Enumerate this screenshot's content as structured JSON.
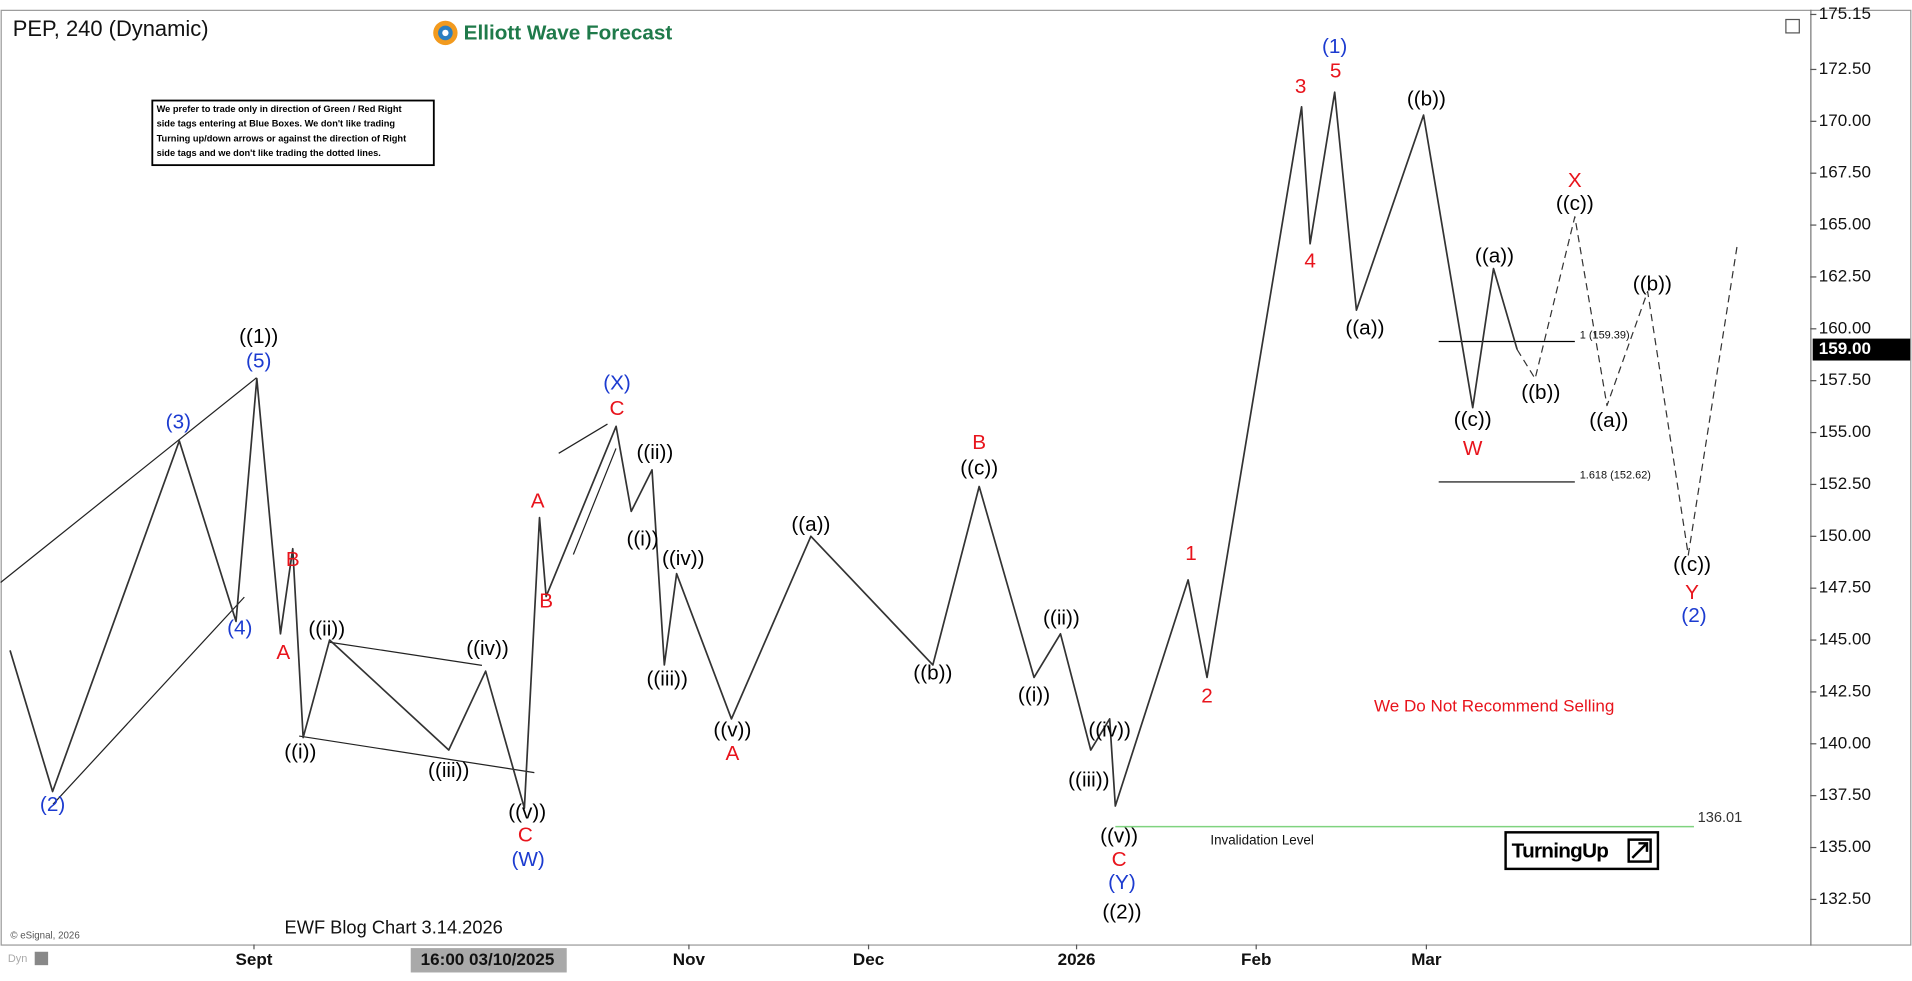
{
  "chart_data": {
    "type": "line",
    "title": "PEP, 240 (Dynamic)",
    "xlim": [
      -26.8,
      164.6
    ],
    "ylim": [
      130.33,
      175.26
    ],
    "xticks": [
      {
        "value": 0,
        "label": "Sept"
      },
      {
        "value": 46,
        "label": "Nov"
      },
      {
        "value": 65,
        "label": "Dec"
      },
      {
        "value": 87,
        "label": "2026"
      },
      {
        "value": 106,
        "label": "Feb"
      },
      {
        "value": 124,
        "label": "Mar"
      }
    ],
    "yticks": [
      {
        "value": 132.5,
        "label": "132.50"
      },
      {
        "value": 135,
        "label": "135.00"
      },
      {
        "value": 137.5,
        "label": "137.50"
      },
      {
        "value": 140,
        "label": "140.00"
      },
      {
        "value": 142.5,
        "label": "142.50"
      },
      {
        "value": 145,
        "label": "145.00"
      },
      {
        "value": 147.5,
        "label": "147.50"
      },
      {
        "value": 150,
        "label": "150.00"
      },
      {
        "value": 152.5,
        "label": "152.50"
      },
      {
        "value": 155,
        "label": "155.00"
      },
      {
        "value": 157.5,
        "label": "157.50"
      },
      {
        "value": 160,
        "label": "160.00"
      },
      {
        "value": 162.5,
        "label": "162.50"
      },
      {
        "value": 165,
        "label": "165.00"
      },
      {
        "value": 167.5,
        "label": "167.50"
      },
      {
        "value": 170,
        "label": "170.00"
      },
      {
        "value": 172.5,
        "label": "172.50"
      },
      175.15
    ],
    "grid": false,
    "series": [
      {
        "color": "#333333",
        "dash": false,
        "x": [
          -25.8,
          -21.3,
          -7.9,
          -1.9,
          0.3,
          2.8,
          4.1,
          5.2,
          8.0,
          20.6,
          24.5,
          28.6,
          30.2,
          30.9,
          38.3,
          39.9,
          42.1,
          43.4,
          44.7,
          50.5,
          58.9,
          71.8,
          76.7,
          82.5,
          85.3,
          88.5,
          90.5,
          91.1,
          98.8,
          100.8,
          110.8,
          111.7,
          114.3,
          116.6,
          123.7,
          128.9,
          131.1,
          133.6
        ],
        "values": [
          144.5,
          137.7,
          154.6,
          145.9,
          157.6,
          145.3,
          149.4,
          140.3,
          145.0,
          139.7,
          143.5,
          136.9,
          150.9,
          147.1,
          155.3,
          151.2,
          153.2,
          143.8,
          148.2,
          141.2,
          150.0,
          143.8,
          152.4,
          143.2,
          145.3,
          139.7,
          141.2,
          137.0,
          147.9,
          143.2,
          170.7,
          164.1,
          171.4,
          160.9,
          170.3,
          156.2,
          162.9,
          159.0
        ]
      },
      {
        "color": "#333333",
        "dash": true,
        "x": [
          133.6,
          135.5,
          139.7,
          143.1,
          147.4,
          151.7,
          156.9
        ],
        "values": [
          159.0,
          157.6,
          165.4,
          156.3,
          161.8,
          149.1,
          164.1
        ]
      }
    ],
    "last_price": {
      "value": 159,
      "label": "159.00"
    },
    "cursor": {
      "x": 24.7,
      "label": "16:00 03/10/2025"
    },
    "levels": [
      {
        "value": 159.39,
        "label": "1 (159.39)",
        "x": [
          125.3,
          139.7
        ]
      },
      {
        "value": 152.62,
        "label": "1.618 (152.62)",
        "x": [
          125.3,
          139.7
        ]
      }
    ],
    "invalidation": {
      "value": 136.01,
      "label": "136.01",
      "text": "Invalidation Level",
      "x": [
        91.1,
        152.3
      ],
      "color": "#7fd37f"
    },
    "annotations": [
      {
        "text": "((1))",
        "x": 0.5,
        "y": 159.58,
        "color": "#000000"
      },
      {
        "text": "(5)",
        "x": 0.5,
        "y": 158.4,
        "color": "#1c3bd0"
      },
      {
        "text": "(3)",
        "x": -8.0,
        "y": 155.47,
        "color": "#1c3bd0"
      },
      {
        "text": "(4)",
        "x": -1.5,
        "y": 145.54,
        "color": "#1c3bd0"
      },
      {
        "text": "(2)",
        "x": -21.3,
        "y": 137.02,
        "color": "#1c3bd0"
      },
      {
        "text": "B",
        "x": 4.1,
        "y": 148.83,
        "color": "#e8141c"
      },
      {
        "text": "A",
        "x": 3.1,
        "y": 144.36,
        "color": "#e8141c"
      },
      {
        "text": "((ii))",
        "x": 7.7,
        "y": 145.48,
        "color": "#000000"
      },
      {
        "text": "((i))",
        "x": 4.9,
        "y": 139.55,
        "color": "#000000"
      },
      {
        "text": "((iii))",
        "x": 20.6,
        "y": 138.67,
        "color": "#000000"
      },
      {
        "text": "((iv))",
        "x": 24.7,
        "y": 144.54,
        "color": "#000000"
      },
      {
        "text": "((v))",
        "x": 28.9,
        "y": 136.67,
        "color": "#000000"
      },
      {
        "text": "C",
        "x": 28.7,
        "y": 135.55,
        "color": "#e8141c"
      },
      {
        "text": "(W)",
        "x": 29.0,
        "y": 134.38,
        "color": "#1c3bd0"
      },
      {
        "text": "A",
        "x": 30.0,
        "y": 151.65,
        "color": "#e8141c"
      },
      {
        "text": "B",
        "x": 30.9,
        "y": 146.83,
        "color": "#e8141c"
      },
      {
        "text": "(X)",
        "x": 38.4,
        "y": 157.35,
        "color": "#1c3bd0"
      },
      {
        "text": "C",
        "x": 38.4,
        "y": 156.11,
        "color": "#e8141c"
      },
      {
        "text": "((ii))",
        "x": 42.4,
        "y": 154.0,
        "color": "#000000"
      },
      {
        "text": "((i))",
        "x": 41.1,
        "y": 149.83,
        "color": "#000000"
      },
      {
        "text": "((iv))",
        "x": 45.4,
        "y": 148.89,
        "color": "#000000"
      },
      {
        "text": "((iii))",
        "x": 43.7,
        "y": 143.07,
        "color": "#000000"
      },
      {
        "text": "((v))",
        "x": 50.6,
        "y": 140.61,
        "color": "#000000"
      },
      {
        "text": "A",
        "x": 50.6,
        "y": 139.49,
        "color": "#e8141c"
      },
      {
        "text": "((a))",
        "x": 58.9,
        "y": 150.53,
        "color": "#000000"
      },
      {
        "text": "((b))",
        "x": 71.8,
        "y": 143.37,
        "color": "#000000"
      },
      {
        "text": "B",
        "x": 76.7,
        "y": 154.47,
        "color": "#e8141c"
      },
      {
        "text": "((c))",
        "x": 76.7,
        "y": 153.23,
        "color": "#000000"
      },
      {
        "text": "((ii))",
        "x": 85.4,
        "y": 146.01,
        "color": "#000000"
      },
      {
        "text": "((i))",
        "x": 82.5,
        "y": 142.31,
        "color": "#000000"
      },
      {
        "text": "((iii))",
        "x": 88.3,
        "y": 138.2,
        "color": "#000000"
      },
      {
        "text": "((iv))",
        "x": 90.5,
        "y": 140.61,
        "color": "#000000"
      },
      {
        "text": "((v))",
        "x": 91.5,
        "y": 135.5,
        "color": "#000000"
      },
      {
        "text": "C",
        "x": 91.5,
        "y": 134.38,
        "color": "#e8141c"
      },
      {
        "text": "(Y)",
        "x": 91.8,
        "y": 133.26,
        "color": "#1c3bd0"
      },
      {
        "text": "((2))",
        "x": 91.8,
        "y": 131.85,
        "color": "#000000"
      },
      {
        "text": "1",
        "x": 99.1,
        "y": 149.12,
        "color": "#e8141c"
      },
      {
        "text": "2",
        "x": 100.8,
        "y": 142.25,
        "color": "#e8141c"
      },
      {
        "text": "3",
        "x": 110.7,
        "y": 171.62,
        "color": "#e8141c"
      },
      {
        "text": "4",
        "x": 111.7,
        "y": 163.22,
        "color": "#e8141c"
      },
      {
        "text": "5",
        "x": 114.4,
        "y": 172.38,
        "color": "#e8141c"
      },
      {
        "text": "(1)",
        "x": 114.3,
        "y": 173.56,
        "color": "#1c3bd0"
      },
      {
        "text": "((a))",
        "x": 117.5,
        "y": 159.99,
        "color": "#000000"
      },
      {
        "text": "((b))",
        "x": 124.0,
        "y": 171.03,
        "color": "#000000"
      },
      {
        "text": "((a))",
        "x": 131.2,
        "y": 163.45,
        "color": "#000000"
      },
      {
        "text": "((c))",
        "x": 128.9,
        "y": 155.58,
        "color": "#000000"
      },
      {
        "text": "W",
        "x": 128.9,
        "y": 154.17,
        "color": "#e8141c"
      },
      {
        "text": "((b))",
        "x": 136.1,
        "y": 156.88,
        "color": "#000000"
      },
      {
        "text": "X",
        "x": 139.7,
        "y": 167.1,
        "color": "#e8141c"
      },
      {
        "text": "((c))",
        "x": 139.7,
        "y": 165.98,
        "color": "#000000"
      },
      {
        "text": "((a))",
        "x": 143.3,
        "y": 155.52,
        "color": "#000000"
      },
      {
        "text": "((b))",
        "x": 147.9,
        "y": 162.1,
        "color": "#000000"
      },
      {
        "text": "((c))",
        "x": 152.1,
        "y": 148.59,
        "color": "#000000"
      },
      {
        "text": "Y",
        "x": 152.1,
        "y": 147.24,
        "color": "#e8141c"
      },
      {
        "text": "(2)",
        "x": 152.3,
        "y": 146.13,
        "color": "#1c3bd0"
      }
    ]
  },
  "notes": {
    "logo": "Elliott Wave Forecast",
    "disclaimer": [
      "We prefer to trade only in direction of Green / Red Right",
      "side tags entering at Blue Boxes. We don't like trading",
      "Turning up/down arrows or against the direction of Right",
      "side tags and we don't like trading the dotted lines."
    ],
    "selling": "We Do Not Recommend Selling",
    "blog": "EWF Blog Chart 3.14.2026",
    "copyright": "© eSignal, 2026",
    "dyn": "Dyn",
    "badge": "TurningUp"
  }
}
